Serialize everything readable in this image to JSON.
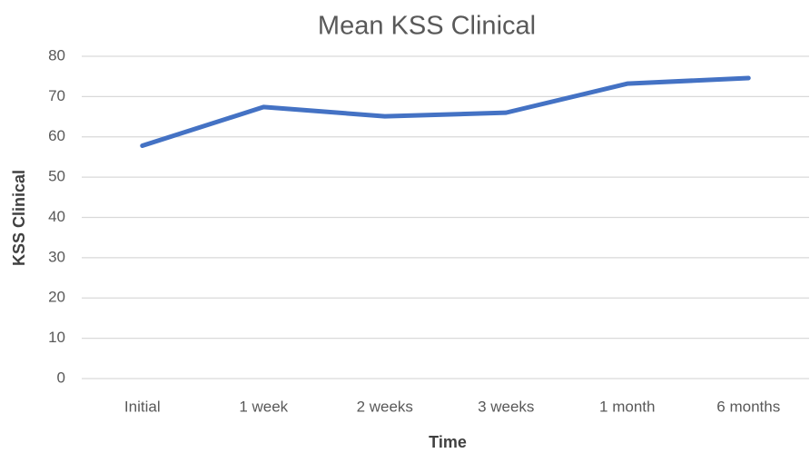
{
  "chart_data": {
    "type": "line",
    "title": "Mean KSS Clinical",
    "x_label": "Time",
    "y_label": "KSS Clinical",
    "categories": [
      "Initial",
      "1 week",
      "2 weeks",
      "3 weeks",
      "1 month",
      "6 months"
    ],
    "series": [
      {
        "name": "Mean KSS Clinical",
        "color": "#4472c4",
        "values": [
          57.8,
          67.4,
          65.1,
          66.0,
          73.2,
          74.6
        ]
      }
    ],
    "ylim": [
      0,
      80
    ],
    "yticks": [
      0,
      10,
      20,
      30,
      40,
      50,
      60,
      70,
      80
    ],
    "grid": true
  }
}
